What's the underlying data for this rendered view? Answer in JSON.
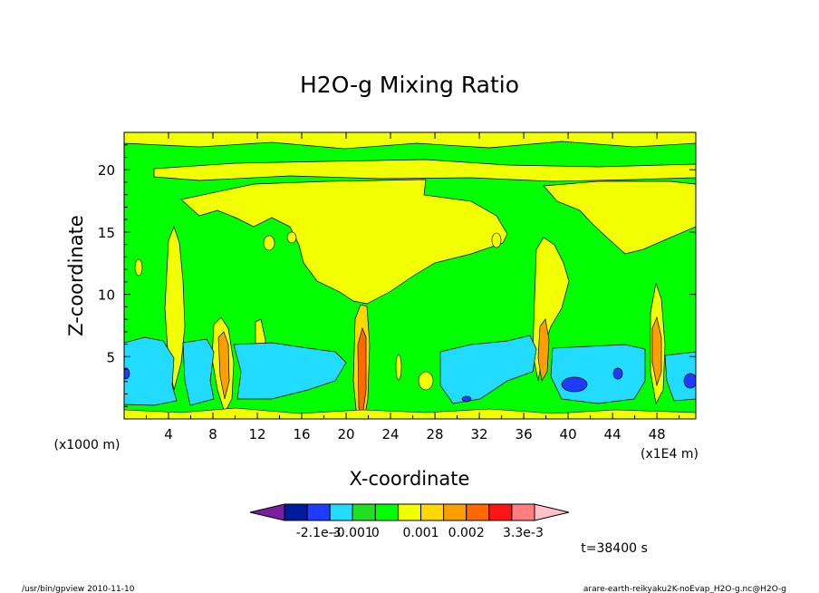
{
  "chart_data": {
    "type": "heatmap",
    "title": "H2O-g Mixing Ratio",
    "xlabel": "X-coordinate",
    "ylabel": "Z-coordinate",
    "x_unit_label": "(x1E4 m)",
    "y_unit_label": "(x1000 m)",
    "xlim": [
      0,
      51.5
    ],
    "ylim": [
      0,
      23
    ],
    "x_ticks": [
      "4",
      "8",
      "12",
      "16",
      "20",
      "24",
      "28",
      "32",
      "36",
      "40",
      "44",
      "48"
    ],
    "y_ticks": [
      "5",
      "10",
      "15",
      "20"
    ],
    "colorbar": {
      "levels": [
        -0.0021,
        -0.001,
        0,
        0.001,
        0.002,
        0.0033
      ],
      "tick_labels": [
        "-2.1e-3",
        "-0.001",
        "0",
        "0.001",
        "0.002",
        "3.3e-3"
      ],
      "colors": [
        "#7a1fa0",
        "#001a9c",
        "#1e3cff",
        "#22dcff",
        "#20e020",
        "#00ff00",
        "#f2ff00",
        "#ffd800",
        "#ff9e00",
        "#ff6a00",
        "#ff1414",
        "#ff7f7f",
        "#ffc0c8"
      ]
    },
    "time_label": "t=38400 s"
  },
  "footer": {
    "left": "/usr/bin/gpview   2010-11-10",
    "right": "arare-earth-reikyaku2K-noEvap_H2O-g.nc@H2O-g"
  }
}
